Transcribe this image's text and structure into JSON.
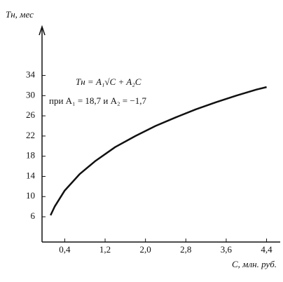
{
  "chart_data": {
    "type": "line",
    "ylabel": "Tн, мес",
    "xlabel": "C, млн. руб.",
    "annotations": [
      "Tн = A₁√C + A₂C",
      "при A₁ = 18,7  и  A₂ = −1,7"
    ],
    "x": [
      0.12,
      0.2,
      0.4,
      0.7,
      1.0,
      1.4,
      1.8,
      2.2,
      2.6,
      3.0,
      3.4,
      3.8,
      4.2,
      4.4
    ],
    "series": [
      {
        "name": null,
        "color": "#111111",
        "values": [
          6.3,
          8.0,
          11.2,
          14.5,
          17.0,
          19.8,
          22.0,
          24.0,
          25.7,
          27.3,
          28.7,
          30.0,
          31.2,
          31.7
        ]
      }
    ],
    "xlim": [
      -0.05,
      4.67
    ],
    "ylim": [
      1,
      42
    ],
    "xticks": [
      {
        "value": 0.4,
        "label": "0,4"
      },
      {
        "value": 1.2,
        "label": "1,2"
      },
      {
        "value": 2.0,
        "label": "2,0"
      },
      {
        "value": 2.8,
        "label": "2,8"
      },
      {
        "value": 3.6,
        "label": "3,6"
      },
      {
        "value": 4.4,
        "label": "4,4"
      }
    ],
    "yticks": [
      6,
      10,
      14,
      18,
      22,
      26,
      30,
      34
    ]
  }
}
